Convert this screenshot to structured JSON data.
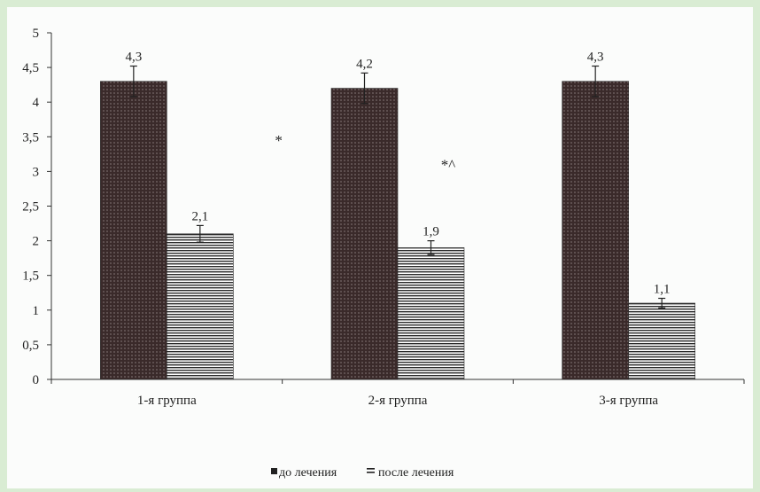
{
  "chart_data": {
    "type": "bar",
    "categories": [
      "1-я группа",
      "2-я группа",
      "3-я группа"
    ],
    "series": [
      {
        "name": "до лечения",
        "values": [
          4.3,
          4.2,
          4.3
        ],
        "errors": [
          0.22,
          0.22,
          0.22
        ],
        "labels": [
          "4,3",
          "4,2",
          "4,3"
        ]
      },
      {
        "name": "после лечения",
        "values": [
          2.1,
          1.9,
          1.1
        ],
        "errors": [
          0.12,
          0.1,
          0.07
        ],
        "labels": [
          "2,1",
          "1,9",
          "1,1"
        ]
      }
    ],
    "ylim": [
      0,
      5
    ],
    "yticks": [
      0,
      0.5,
      1,
      1.5,
      2,
      2.5,
      3,
      3.5,
      4,
      4.5,
      5
    ],
    "ytick_labels": [
      "0",
      "0,5",
      "1",
      "1,5",
      "2",
      "2,5",
      "3",
      "3,5",
      "4",
      "4,5",
      "5"
    ],
    "annotations": [
      "*",
      "*^"
    ],
    "legend_position": "bottom",
    "grid": false,
    "colors": {
      "before": "#3a2a2a",
      "after": "#2a2a2a",
      "axis": "#333333",
      "background": "#d9ecd3"
    }
  }
}
